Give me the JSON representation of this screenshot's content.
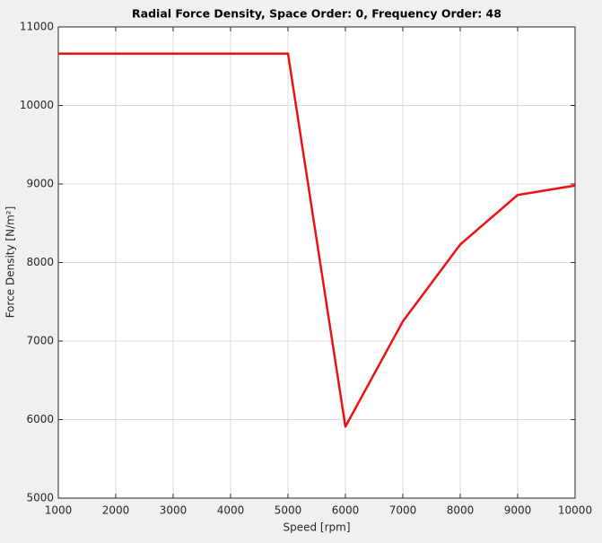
{
  "chart_data": {
    "type": "line",
    "title": "Radial Force Density, Space Order: 0, Frequency Order: 48",
    "xlabel": "Speed [rpm]",
    "ylabel": "Force Density [N/m²]",
    "x": [
      1000,
      2000,
      3000,
      4000,
      5000,
      6000,
      7000,
      8000,
      9000,
      10000
    ],
    "values": [
      10660,
      10660,
      10660,
      10660,
      10660,
      5910,
      7250,
      8230,
      8860,
      8980
    ],
    "color": "#ee1111",
    "xlim": [
      1000,
      10000
    ],
    "xticks": [
      1000,
      2000,
      3000,
      4000,
      5000,
      6000,
      7000,
      8000,
      9000,
      10000
    ],
    "ylim": [
      5000,
      11000
    ],
    "yticks": [
      5000,
      6000,
      7000,
      8000,
      9000,
      10000,
      11000
    ],
    "grid": true
  }
}
